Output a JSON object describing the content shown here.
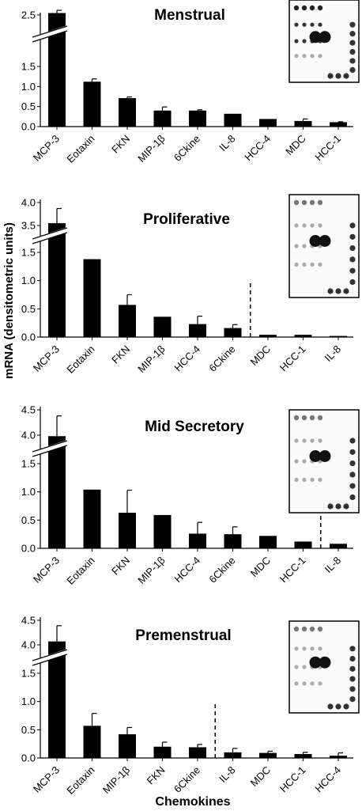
{
  "figure": {
    "ylabel": "mRNA (densitometric units)",
    "xlabel": "Chemokines"
  },
  "chart_data": [
    {
      "type": "bar",
      "title": "Menstrual",
      "categories": [
        "MCP-3",
        "Eotaxin",
        "FKN",
        "MIP-1β",
        "6Ckine",
        "IL-8",
        "HCC-4",
        "MDC",
        "HCC-1"
      ],
      "values": [
        2.55,
        1.12,
        0.71,
        0.4,
        0.4,
        0.32,
        0.19,
        0.14,
        0.11
      ],
      "errors": [
        0.07,
        0.07,
        0.03,
        0.09,
        0.02,
        0.0,
        0.0,
        0.05,
        0.01
      ],
      "lower_ticks": [
        "0.0",
        "0.5",
        "1.0",
        "1.5"
      ],
      "upper_ticks": [
        "2.5"
      ],
      "dashed_after_index": null
    },
    {
      "type": "bar",
      "title": "Proliferative",
      "categories": [
        "MCP-3",
        "Eotaxin",
        "FKN",
        "MIP-1β",
        "HCC-4",
        "6Ckine",
        "MDC",
        "HCC-1",
        "IL-8"
      ],
      "values": [
        3.55,
        1.38,
        0.57,
        0.36,
        0.23,
        0.16,
        0.04,
        0.04,
        0.02
      ],
      "errors": [
        0.32,
        0.28,
        0.18,
        0.0,
        0.14,
        0.06,
        0.0,
        0.0,
        0.0
      ],
      "lower_ticks": [
        "0.0",
        "0.5",
        "1.0",
        "1.5"
      ],
      "upper_ticks": [
        "3.5",
        "4.0"
      ],
      "dashed_after_index": 5
    },
    {
      "type": "bar",
      "title": "Mid Secretory",
      "categories": [
        "MCP-3",
        "Eotaxin",
        "FKN",
        "MIP-1β",
        "HCC-4",
        "6Ckine",
        "MDC",
        "HCC-1",
        "IL-8"
      ],
      "values": [
        3.98,
        1.04,
        0.63,
        0.59,
        0.26,
        0.25,
        0.22,
        0.12,
        0.08
      ],
      "errors": [
        0.4,
        0.0,
        0.4,
        0.0,
        0.2,
        0.13,
        0.0,
        0.0,
        0.0
      ],
      "lower_ticks": [
        "0.0",
        "0.5",
        "1.0",
        "1.5"
      ],
      "upper_ticks": [
        "4.0",
        "4.5"
      ],
      "dashed_after_index": 7
    },
    {
      "type": "bar",
      "title": "Premenstrual",
      "categories": [
        "MCP-3",
        "Eotaxin",
        "MIP-1β",
        "FKN",
        "6Ckine",
        "IL-8",
        "MDC",
        "HCC-1",
        "HCC-4"
      ],
      "values": [
        4.07,
        0.57,
        0.42,
        0.2,
        0.19,
        0.1,
        0.09,
        0.07,
        0.04
      ],
      "errors": [
        0.32,
        0.22,
        0.12,
        0.08,
        0.05,
        0.07,
        0.03,
        0.03,
        0.05
      ],
      "lower_ticks": [
        "0.0",
        "0.5",
        "1.0",
        "1.5"
      ],
      "upper_ticks": [
        "4.0",
        "4.5"
      ],
      "dashed_after_index": 4
    }
  ]
}
